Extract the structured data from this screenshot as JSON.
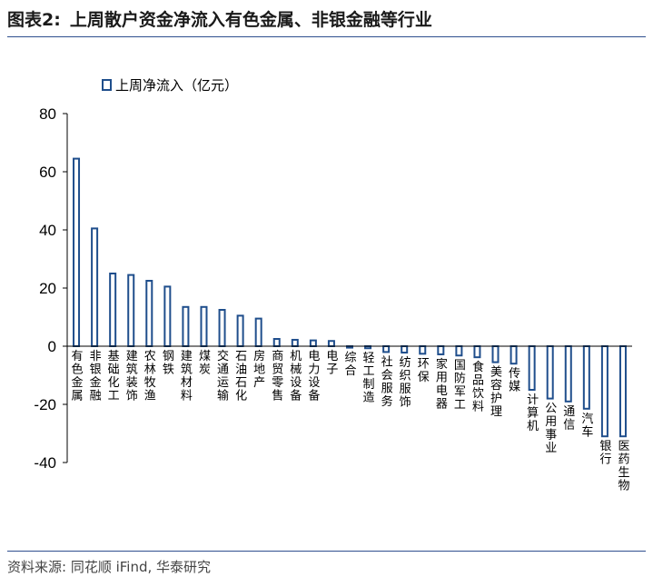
{
  "figure": {
    "label": "图表2:",
    "title": "上周散户资金净流入有色金属、非银金融等行业",
    "source": "资料来源: 同花顺 iFind, 华泰研究"
  },
  "colors": {
    "bar_stroke": "#1f4e8c",
    "bar_fill": "#ffffff",
    "axis": "#000000",
    "rule": "#2f4f8f"
  },
  "chart_data": {
    "type": "bar",
    "legend": {
      "label": "上周净流入（亿元）",
      "placement": "top-left"
    },
    "ylim": [
      -40,
      80
    ],
    "yticks": [
      -40,
      -20,
      0,
      20,
      40,
      60,
      80
    ],
    "grid": false,
    "categories": [
      "有色金属",
      "非银金融",
      "基础化工",
      "建筑装饰",
      "农林牧渔",
      "钢铁",
      "建筑材料",
      "煤炭",
      "交通运输",
      "石油石化",
      "房地产",
      "商贸零售",
      "机械设备",
      "电力设备",
      "电子",
      "综合",
      "轻工制造",
      "社会服务",
      "纺织服饰",
      "环保",
      "家用电器",
      "国防军工",
      "食品饮料",
      "美容护理",
      "传媒",
      "计算机",
      "公用事业",
      "通信",
      "汽车",
      "银行",
      "医药生物"
    ],
    "series": [
      {
        "name": "上周净流入（亿元）",
        "values": [
          64.5,
          40.5,
          25.0,
          24.5,
          22.5,
          20.5,
          13.5,
          13.5,
          12.5,
          10.5,
          9.5,
          2.5,
          2.2,
          2.0,
          1.8,
          -0.5,
          -0.7,
          -2.0,
          -2.2,
          -2.6,
          -2.8,
          -3.2,
          -3.8,
          -5.5,
          -6.0,
          -15.0,
          -18.0,
          -19.0,
          -21.5,
          -31.0,
          -31.0
        ]
      }
    ]
  }
}
